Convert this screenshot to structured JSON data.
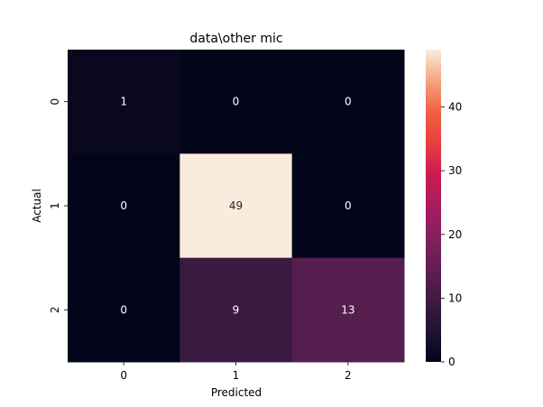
{
  "chart_data": {
    "type": "heatmap",
    "title": "data\\other mic",
    "xlabel": "Predicted",
    "ylabel": "Actual",
    "x_categories": [
      "0",
      "1",
      "2"
    ],
    "y_categories": [
      "0",
      "1",
      "2"
    ],
    "values": [
      [
        1,
        0,
        0
      ],
      [
        0,
        49,
        0
      ],
      [
        0,
        9,
        13
      ]
    ],
    "colorbar": {
      "range": [
        0,
        49
      ],
      "ticks": [
        "0",
        "10",
        "20",
        "30",
        "40"
      ],
      "tick_values": [
        0,
        10,
        20,
        30,
        40
      ]
    },
    "colormap": "rocket"
  }
}
